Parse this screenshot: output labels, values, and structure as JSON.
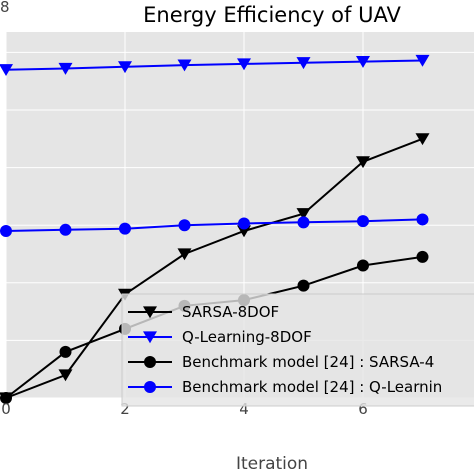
{
  "chart_data": {
    "type": "line",
    "title": "Energy Efficiency of UAV",
    "xlabel": "Iteration",
    "ylabel": "",
    "xlim": [
      0,
      7.75
    ],
    "ylim": [
      0,
      8.1
    ],
    "x_ticks": [
      0,
      2,
      4,
      6
    ],
    "y_ticks": [
      0,
      1,
      2,
      3,
      4,
      5,
      6,
      7,
      8
    ],
    "y_tick_labels_visible": [
      "8"
    ],
    "grid": true,
    "legend_position": "lower-right",
    "x": [
      0,
      1,
      2,
      3,
      4,
      5,
      6,
      7
    ],
    "series": [
      {
        "name": "SARSA-8DOF",
        "color": "#000000",
        "marker": "triangle-down",
        "values": [
          0.0,
          0.4,
          1.8,
          2.5,
          2.9,
          3.2,
          4.1,
          4.5
        ]
      },
      {
        "name": "Q-Learning-8DOF",
        "color": "#0000ff",
        "marker": "triangle-down",
        "values": [
          5.7,
          5.72,
          5.75,
          5.78,
          5.8,
          5.82,
          5.84,
          5.86
        ]
      },
      {
        "name": "Benchmark model [24] : SARSA-4",
        "color": "#000000",
        "marker": "circle",
        "values": [
          0.0,
          0.8,
          1.2,
          1.6,
          1.7,
          1.95,
          2.3,
          2.45
        ]
      },
      {
        "name": "Benchmark model [24] : Q-Learnin",
        "color": "#0000ff",
        "marker": "circle",
        "values": [
          2.9,
          2.92,
          2.94,
          3.0,
          3.03,
          3.05,
          3.07,
          3.1
        ]
      }
    ]
  }
}
